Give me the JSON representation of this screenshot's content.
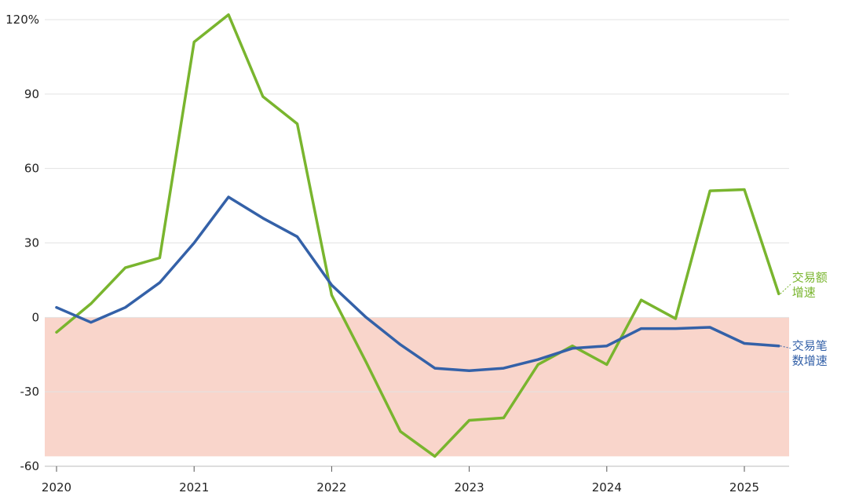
{
  "chart_data": {
    "type": "line",
    "title": "",
    "xlabel": "",
    "ylabel": "",
    "ylim": [
      -60,
      120
    ],
    "xlim": [
      2020,
      2025.33
    ],
    "y_unit_suffix": "%",
    "y_ticks": [
      {
        "value": 120,
        "label": "120%"
      },
      {
        "value": 90,
        "label": "90"
      },
      {
        "value": 60,
        "label": "60"
      },
      {
        "value": 30,
        "label": "30"
      },
      {
        "value": 0,
        "label": "0"
      },
      {
        "value": -30,
        "label": "-30"
      },
      {
        "value": -60,
        "label": "-60"
      }
    ],
    "x_ticks": [
      {
        "value": 2020,
        "label": "2020"
      },
      {
        "value": 2021,
        "label": "2021"
      },
      {
        "value": 2022,
        "label": "2022"
      },
      {
        "value": 2023,
        "label": "2023"
      },
      {
        "value": 2024,
        "label": "2024"
      },
      {
        "value": 2025,
        "label": "2025"
      }
    ],
    "negative_region": {
      "from": -56,
      "to": 0,
      "color": "#f9d5cb"
    },
    "grid": true,
    "series": [
      {
        "name": "交易额增速",
        "label_lines": [
          "交易额",
          "增速"
        ],
        "color": "#79b52e",
        "x": [
          2020,
          2020.25,
          2020.5,
          2020.75,
          2021,
          2021.25,
          2021.5,
          2021.75,
          2022,
          2022.25,
          2022.5,
          2022.75,
          2023,
          2023.25,
          2023.5,
          2023.75,
          2024,
          2024.25,
          2024.5,
          2024.75,
          2025,
          2025.25
        ],
        "values": [
          -6,
          5.5,
          20,
          24,
          111,
          122,
          89,
          78,
          9,
          -18,
          -46,
          -56,
          -41.5,
          -40.5,
          -19,
          -11.5,
          -19,
          7,
          -0.5,
          51,
          51.5,
          9.5
        ]
      },
      {
        "name": "交易笔数增速",
        "label_lines": [
          "交易笔",
          "数增速"
        ],
        "color": "#3461a8",
        "x": [
          2020,
          2020.25,
          2020.5,
          2020.75,
          2021,
          2021.25,
          2021.5,
          2021.75,
          2022,
          2022.25,
          2022.5,
          2022.75,
          2023,
          2023.25,
          2023.5,
          2023.75,
          2024,
          2024.25,
          2024.5,
          2024.75,
          2025,
          2025.25
        ],
        "values": [
          4,
          -2,
          4,
          14,
          30,
          48.5,
          40,
          32.5,
          13,
          0,
          -11,
          -20.5,
          -21.5,
          -20.5,
          -17,
          -12.5,
          -11.5,
          -4.5,
          -4.5,
          -4,
          -10.5,
          -11.5
        ]
      }
    ]
  }
}
